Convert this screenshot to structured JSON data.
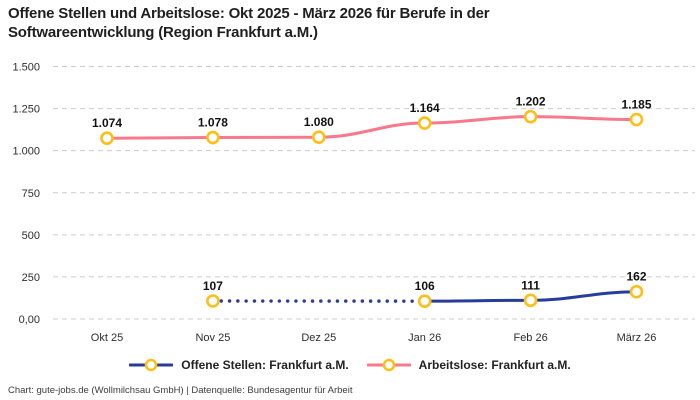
{
  "header": {
    "title_line1": "Offene Stellen und Arbeitslose: Okt 2025 - März 2026 für Berufe in der",
    "title_line2": "Softwareentwicklung (Region Frankfurt a.M.)"
  },
  "footer": {
    "text": "Chart: gute-jobs.de (Wollmilchsau GmbH) | Datenquelle: Bundesagentur für Arbeit"
  },
  "colors": {
    "series_open_positions": "#283c9b",
    "series_unemployed": "#f8788c",
    "marker_ring": "#fcbf17",
    "marker_fill": "#ffffff",
    "gridline": "#cccccc",
    "title_text": "#1f1f1f",
    "axis_text": "#2e2e2e",
    "data_label_text": "#111111"
  },
  "chart_data": {
    "type": "line",
    "title": "Offene Stellen und Arbeitslose: Okt 2025 - März 2026 für Berufe in der Softwareentwicklung (Region Frankfurt a.M.)",
    "categories": [
      "Okt 25",
      "Nov 25",
      "Dez 25",
      "Jan 26",
      "Feb 26",
      "März 26"
    ],
    "y_tick_labels": [
      "1.500",
      "1.250",
      "1.000",
      "750",
      "500",
      "250",
      "0,00"
    ],
    "y_tick_values": [
      1500,
      1250,
      1000,
      750,
      500,
      250,
      0
    ],
    "ylim": [
      0,
      1500
    ],
    "grid": "dashed",
    "legend_position": "bottom",
    "series": [
      {
        "name": "Offene Stellen: Frankfurt a.M.",
        "color": "#283c9b",
        "values": [
          null,
          107,
          null,
          106,
          111,
          162
        ],
        "labels": [
          "",
          "107",
          "",
          "106",
          "111",
          "162"
        ],
        "dotted_segments": [
          [
            1,
            3
          ]
        ]
      },
      {
        "name": "Arbeitslose: Frankfurt a.M.",
        "color": "#f8788c",
        "values": [
          1074,
          1078,
          1080,
          1164,
          1202,
          1185
        ],
        "labels": [
          "1.074",
          "1.078",
          "1.080",
          "1.164",
          "1.202",
          "1.185"
        ],
        "dotted_segments": []
      }
    ]
  }
}
